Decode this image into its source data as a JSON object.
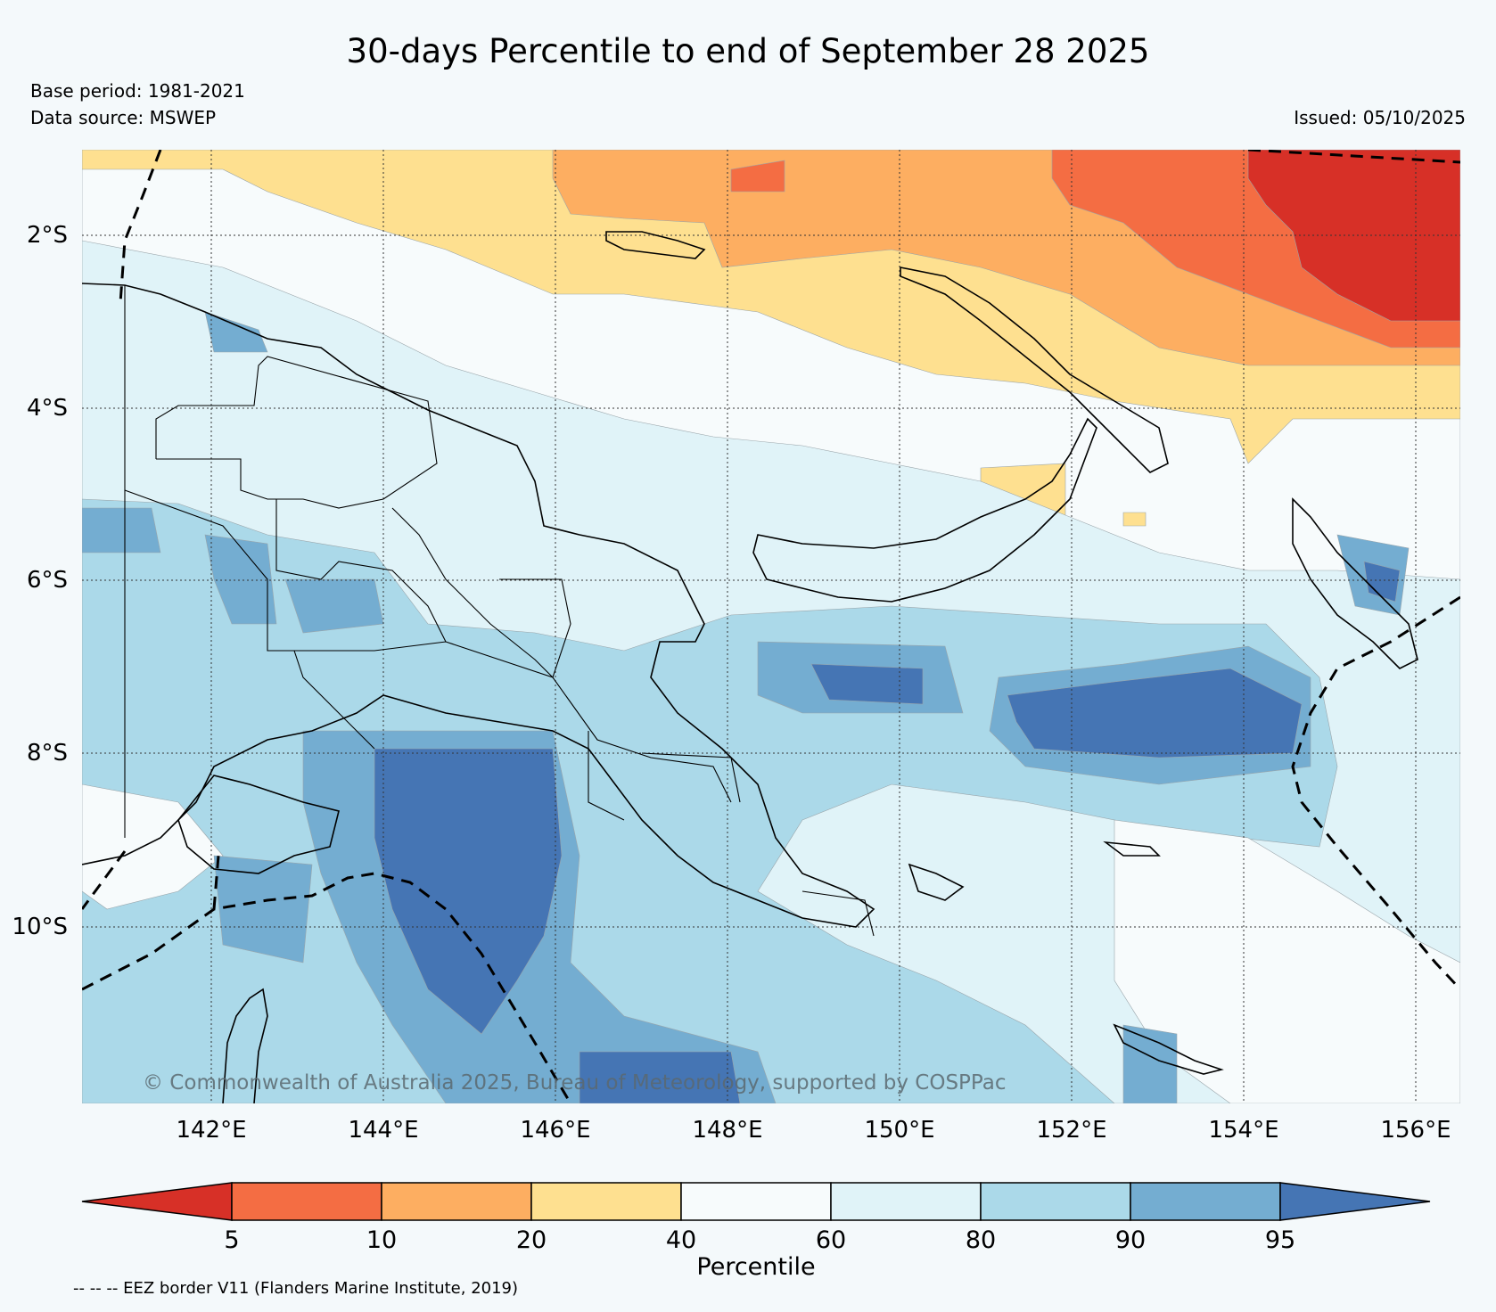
{
  "title": "30-days Percentile to end of September 28 2025",
  "base_period": "Base period: 1981-2021",
  "data_source": "Data source: MSWEP",
  "issued": "Issued: 05/10/2025",
  "copyright": "© Commonwealth of Australia 2025, Bureau of Meteorology, supported by COSPPac",
  "lat_labels": [
    "2°S",
    "4°S",
    "6°S",
    "8°S",
    "10°S"
  ],
  "lon_labels": [
    "142°E",
    "144°E",
    "146°E",
    "148°E",
    "150°E",
    "152°E",
    "154°E",
    "156°E"
  ],
  "colorbar": {
    "title": "Percentile",
    "ticks": [
      "5",
      "10",
      "20",
      "40",
      "60",
      "80",
      "90",
      "95"
    ],
    "colors": [
      "#d73027",
      "#f46d43",
      "#fdae61",
      "#fee090",
      "#f7fbfc",
      "#e0f3f8",
      "#abd9e9",
      "#74add1",
      "#4575b4"
    ]
  },
  "eez_note": "-- -- -- EEZ border V11 (Flanders Marine Institute, 2019)"
}
